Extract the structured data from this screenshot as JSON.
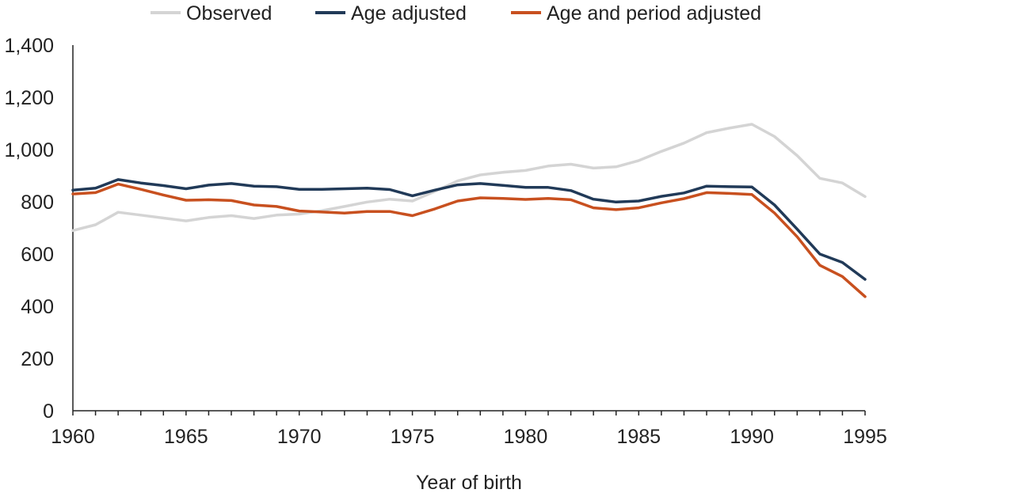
{
  "chart_data": {
    "type": "line",
    "title": "",
    "xlabel": "Year of birth",
    "ylabel": "",
    "xlim": [
      1960,
      1995
    ],
    "ylim": [
      0,
      1400
    ],
    "x_ticks": [
      "1960",
      "1965",
      "1970",
      "1975",
      "1980",
      "1985",
      "1990",
      "1995"
    ],
    "y_ticks": [
      "0",
      "200",
      "400",
      "600",
      "800",
      "1,000",
      "1,200",
      "1,400"
    ],
    "grid": false,
    "legend_position": "top",
    "x": [
      1960,
      1961,
      1962,
      1963,
      1964,
      1965,
      1966,
      1967,
      1968,
      1969,
      1970,
      1971,
      1972,
      1973,
      1974,
      1975,
      1976,
      1977,
      1978,
      1979,
      1980,
      1981,
      1982,
      1983,
      1984,
      1985,
      1986,
      1987,
      1988,
      1989,
      1990,
      1991,
      1992,
      1993,
      1994,
      1995
    ],
    "series": [
      {
        "name": "Observed",
        "color": "#d4d4d4",
        "values": [
          690,
          712,
          760,
          749,
          738,
          727,
          740,
          747,
          736,
          749,
          753,
          766,
          782,
          799,
          810,
          803,
          840,
          880,
          903,
          913,
          920,
          937,
          944,
          929,
          934,
          958,
          993,
          1025,
          1065,
          1082,
          1097,
          1050,
          977,
          890,
          872,
          820
        ]
      },
      {
        "name": "Age adjusted",
        "color": "#213a58",
        "values": [
          845,
          852,
          885,
          872,
          862,
          850,
          864,
          870,
          860,
          858,
          848,
          848,
          850,
          852,
          847,
          823,
          845,
          865,
          870,
          863,
          855,
          855,
          843,
          810,
          799,
          803,
          821,
          834,
          860,
          858,
          857,
          788,
          695,
          600,
          568,
          503
        ]
      },
      {
        "name": "Age and period adjusted",
        "color": "#c8501f",
        "values": [
          830,
          835,
          868,
          848,
          826,
          806,
          808,
          805,
          788,
          782,
          765,
          761,
          757,
          763,
          763,
          747,
          773,
          803,
          815,
          813,
          809,
          813,
          808,
          777,
          770,
          777,
          796,
          812,
          835,
          832,
          828,
          757,
          666,
          557,
          514,
          437
        ]
      }
    ]
  }
}
